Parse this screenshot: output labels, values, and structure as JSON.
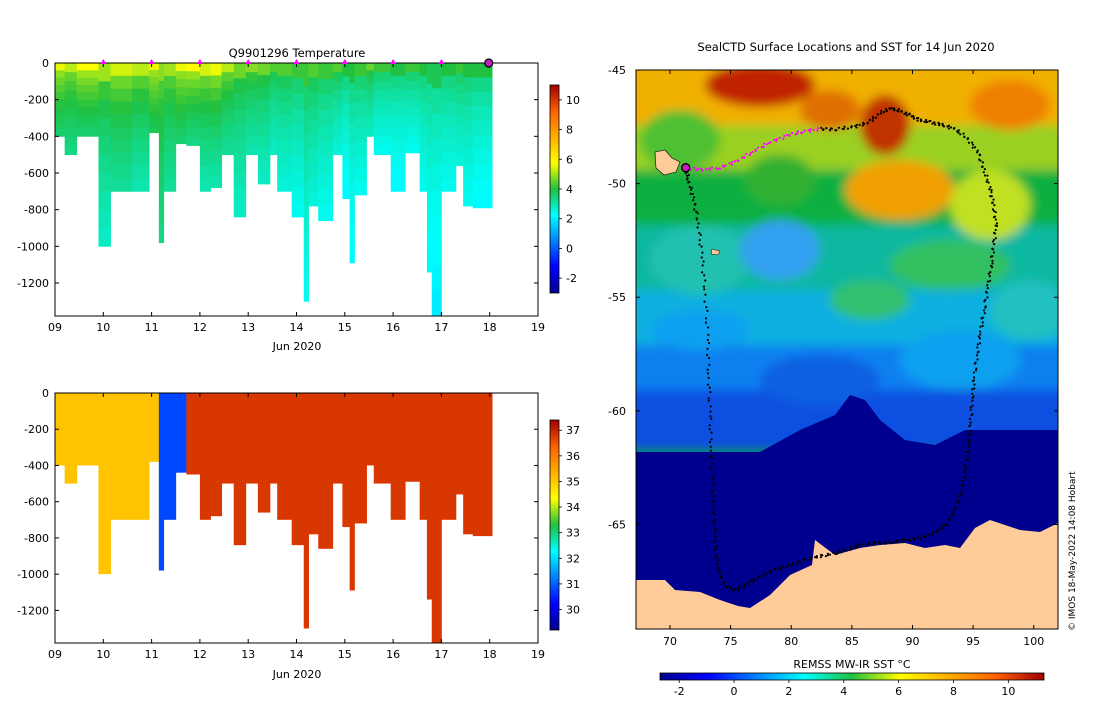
{
  "chart_data": [
    {
      "type": "heatmap",
      "title": "Q9901296  Temperature",
      "xlabel": "Jun 2020",
      "ylabel": "",
      "x_ticks": [
        "09",
        "10",
        "11",
        "12",
        "13",
        "14",
        "15",
        "16",
        "17",
        "18",
        "19"
      ],
      "xlim": [
        9,
        19
      ],
      "y_ticks": [
        0,
        -200,
        -400,
        -600,
        -800,
        -1000,
        -1200
      ],
      "ylim": [
        -1380,
        0
      ],
      "colorbar": {
        "ticks": [
          10,
          8,
          6,
          4,
          2,
          0,
          -2
        ],
        "range": [
          -3,
          11
        ]
      },
      "surface_markers": [
        10,
        11,
        12,
        13,
        14,
        15,
        16,
        17
      ],
      "profiles": [
        {
          "t0": 9.0,
          "t1": 9.2,
          "depth": 400,
          "surface": 5.6,
          "deep": 3.6
        },
        {
          "t0": 9.2,
          "t1": 9.45,
          "depth": 500,
          "surface": 5.2,
          "deep": 3.4
        },
        {
          "t0": 9.45,
          "t1": 9.9,
          "depth": 400,
          "surface": 5.8,
          "deep": 3.6
        },
        {
          "t0": 9.9,
          "t1": 10.15,
          "depth": 1000,
          "surface": 5.0,
          "deep": 2.8
        },
        {
          "t0": 10.15,
          "t1": 10.6,
          "depth": 700,
          "surface": 5.4,
          "deep": 3.2
        },
        {
          "t0": 10.6,
          "t1": 10.95,
          "depth": 700,
          "surface": 5.2,
          "deep": 3.0
        },
        {
          "t0": 10.95,
          "t1": 11.15,
          "depth": 380,
          "surface": 5.6,
          "deep": 3.8
        },
        {
          "t0": 11.15,
          "t1": 11.25,
          "depth": 980,
          "surface": 4.8,
          "deep": 3.4
        },
        {
          "t0": 11.25,
          "t1": 11.5,
          "depth": 700,
          "surface": 5.0,
          "deep": 3.2
        },
        {
          "t0": 11.5,
          "t1": 11.72,
          "depth": 440,
          "surface": 5.6,
          "deep": 3.6
        },
        {
          "t0": 11.72,
          "t1": 12.0,
          "depth": 450,
          "surface": 5.8,
          "deep": 3.4
        },
        {
          "t0": 12.0,
          "t1": 12.22,
          "depth": 700,
          "surface": 5.4,
          "deep": 3.0
        },
        {
          "t0": 12.22,
          "t1": 12.45,
          "depth": 680,
          "surface": 5.6,
          "deep": 3.0
        },
        {
          "t0": 12.45,
          "t1": 12.7,
          "depth": 500,
          "surface": 5.2,
          "deep": 3.2
        },
        {
          "t0": 12.7,
          "t1": 12.95,
          "depth": 840,
          "surface": 4.6,
          "deep": 2.8
        },
        {
          "t0": 12.95,
          "t1": 13.2,
          "depth": 500,
          "surface": 4.8,
          "deep": 3.0
        },
        {
          "t0": 13.2,
          "t1": 13.45,
          "depth": 660,
          "surface": 4.6,
          "deep": 2.8
        },
        {
          "t0": 13.45,
          "t1": 13.6,
          "depth": 500,
          "surface": 4.4,
          "deep": 2.8
        },
        {
          "t0": 13.6,
          "t1": 13.9,
          "depth": 700,
          "surface": 4.4,
          "deep": 2.6
        },
        {
          "t0": 13.9,
          "t1": 14.15,
          "depth": 840,
          "surface": 4.2,
          "deep": 2.4
        },
        {
          "t0": 14.15,
          "t1": 14.25,
          "depth": 1300,
          "surface": 4.2,
          "deep": 2.4
        },
        {
          "t0": 14.25,
          "t1": 14.45,
          "depth": 780,
          "surface": 4.4,
          "deep": 2.6
        },
        {
          "t0": 14.45,
          "t1": 14.75,
          "depth": 860,
          "surface": 4.2,
          "deep": 2.4
        },
        {
          "t0": 14.75,
          "t1": 14.95,
          "depth": 500,
          "surface": 4.4,
          "deep": 2.6
        },
        {
          "t0": 14.95,
          "t1": 15.1,
          "depth": 740,
          "surface": 4.0,
          "deep": 2.2
        },
        {
          "t0": 15.1,
          "t1": 15.2,
          "depth": 1090,
          "surface": 4.0,
          "deep": 2.2
        },
        {
          "t0": 15.2,
          "t1": 15.45,
          "depth": 720,
          "surface": 4.2,
          "deep": 2.4
        },
        {
          "t0": 15.45,
          "t1": 15.6,
          "depth": 400,
          "surface": 4.6,
          "deep": 2.8
        },
        {
          "t0": 15.6,
          "t1": 15.95,
          "depth": 500,
          "surface": 4.2,
          "deep": 2.4
        },
        {
          "t0": 15.95,
          "t1": 16.25,
          "depth": 700,
          "surface": 4.0,
          "deep": 2.2
        },
        {
          "t0": 16.25,
          "t1": 16.55,
          "depth": 490,
          "surface": 4.2,
          "deep": 2.4
        },
        {
          "t0": 16.55,
          "t1": 16.7,
          "depth": 700,
          "surface": 4.0,
          "deep": 2.4
        },
        {
          "t0": 16.7,
          "t1": 16.8,
          "depth": 1140,
          "surface": 3.8,
          "deep": 2.2
        },
        {
          "t0": 16.8,
          "t1": 17.0,
          "depth": 1380,
          "surface": 3.8,
          "deep": 2.0
        },
        {
          "t0": 17.0,
          "t1": 17.3,
          "depth": 700,
          "surface": 4.0,
          "deep": 2.4
        },
        {
          "t0": 17.3,
          "t1": 17.45,
          "depth": 560,
          "surface": 4.2,
          "deep": 2.6
        },
        {
          "t0": 17.45,
          "t1": 17.65,
          "depth": 780,
          "surface": 4.0,
          "deep": 2.4
        },
        {
          "t0": 17.65,
          "t1": 18.05,
          "depth": 790,
          "surface": 4.0,
          "deep": 2.2
        }
      ]
    },
    {
      "type": "heatmap",
      "title": "",
      "xlabel": "Jun 2020",
      "ylabel": "",
      "x_ticks": [
        "09",
        "10",
        "11",
        "12",
        "13",
        "14",
        "15",
        "16",
        "17",
        "18",
        "19"
      ],
      "xlim": [
        9,
        19
      ],
      "y_ticks": [
        0,
        -200,
        -400,
        -600,
        -800,
        -1000,
        -1200
      ],
      "ylim": [
        -1380,
        0
      ],
      "colorbar": {
        "ticks": [
          37,
          36,
          35,
          34,
          33,
          32,
          31,
          30
        ],
        "range": [
          29.2,
          37.4
        ]
      },
      "profiles": [
        {
          "t0": 9.0,
          "t1": 9.2,
          "depth": 400,
          "value": 35.1
        },
        {
          "t0": 9.2,
          "t1": 9.45,
          "depth": 500,
          "value": 35.1
        },
        {
          "t0": 9.45,
          "t1": 9.9,
          "depth": 400,
          "value": 35.1
        },
        {
          "t0": 9.9,
          "t1": 10.15,
          "depth": 1000,
          "value": 35.1
        },
        {
          "t0": 10.15,
          "t1": 10.6,
          "depth": 700,
          "value": 35.1
        },
        {
          "t0": 10.6,
          "t1": 10.95,
          "depth": 700,
          "value": 35.1
        },
        {
          "t0": 10.95,
          "t1": 11.15,
          "depth": 380,
          "value": 35.1
        },
        {
          "t0": 11.15,
          "t1": 11.25,
          "depth": 980,
          "value": 30.8
        },
        {
          "t0": 11.25,
          "t1": 11.5,
          "depth": 700,
          "value": 30.8
        },
        {
          "t0": 11.5,
          "t1": 11.72,
          "depth": 440,
          "value": 30.8
        },
        {
          "t0": 11.72,
          "t1": 12.0,
          "depth": 450,
          "value": 36.8
        },
        {
          "t0": 12.0,
          "t1": 12.22,
          "depth": 700,
          "value": 36.8
        },
        {
          "t0": 12.22,
          "t1": 12.45,
          "depth": 680,
          "value": 36.8
        },
        {
          "t0": 12.45,
          "t1": 12.7,
          "depth": 500,
          "value": 36.8
        },
        {
          "t0": 12.7,
          "t1": 12.95,
          "depth": 840,
          "value": 36.8
        },
        {
          "t0": 12.95,
          "t1": 13.2,
          "depth": 500,
          "value": 36.8
        },
        {
          "t0": 13.2,
          "t1": 13.45,
          "depth": 660,
          "value": 36.8
        },
        {
          "t0": 13.45,
          "t1": 13.6,
          "depth": 500,
          "value": 36.8
        },
        {
          "t0": 13.6,
          "t1": 13.9,
          "depth": 700,
          "value": 36.8
        },
        {
          "t0": 13.9,
          "t1": 14.15,
          "depth": 840,
          "value": 36.8
        },
        {
          "t0": 14.15,
          "t1": 14.25,
          "depth": 1300,
          "value": 36.8
        },
        {
          "t0": 14.25,
          "t1": 14.45,
          "depth": 780,
          "value": 36.8
        },
        {
          "t0": 14.45,
          "t1": 14.75,
          "depth": 860,
          "value": 36.8
        },
        {
          "t0": 14.75,
          "t1": 14.95,
          "depth": 500,
          "value": 36.8
        },
        {
          "t0": 14.95,
          "t1": 15.1,
          "depth": 740,
          "value": 36.8
        },
        {
          "t0": 15.1,
          "t1": 15.2,
          "depth": 1090,
          "value": 36.8
        },
        {
          "t0": 15.2,
          "t1": 15.45,
          "depth": 720,
          "value": 36.8
        },
        {
          "t0": 15.45,
          "t1": 15.6,
          "depth": 400,
          "value": 36.8
        },
        {
          "t0": 15.6,
          "t1": 15.95,
          "depth": 500,
          "value": 36.8
        },
        {
          "t0": 15.95,
          "t1": 16.25,
          "depth": 700,
          "value": 36.8
        },
        {
          "t0": 16.25,
          "t1": 16.55,
          "depth": 490,
          "value": 36.8
        },
        {
          "t0": 16.55,
          "t1": 16.7,
          "depth": 700,
          "value": 36.8
        },
        {
          "t0": 16.7,
          "t1": 16.8,
          "depth": 1140,
          "value": 36.8
        },
        {
          "t0": 16.8,
          "t1": 17.0,
          "depth": 1380,
          "value": 36.8
        },
        {
          "t0": 17.0,
          "t1": 17.3,
          "depth": 700,
          "value": 36.8
        },
        {
          "t0": 17.3,
          "t1": 17.45,
          "depth": 560,
          "value": 36.8
        },
        {
          "t0": 17.45,
          "t1": 17.65,
          "depth": 780,
          "value": 36.8
        },
        {
          "t0": 17.65,
          "t1": 18.05,
          "depth": 790,
          "value": 36.8
        }
      ]
    },
    {
      "type": "heatmap",
      "title": "SealCTD Surface Locations and SST for 14 Jun 2020",
      "xlabel": "",
      "ylabel": "",
      "x_ticks": [
        70,
        75,
        80,
        85,
        90,
        95,
        100
      ],
      "y_ticks": [
        -45,
        -50,
        -55,
        -60,
        -65
      ],
      "xlim": [
        67.2,
        102
      ],
      "ylim": [
        -69.6,
        -45
      ],
      "colorbar": {
        "label": "REMSS MW-IR SST °C",
        "ticks": [
          -2,
          0,
          2,
          4,
          6,
          8,
          10
        ],
        "range": [
          -2.7,
          11.3
        ]
      },
      "highlighted_position": {
        "lon": 71.3,
        "lat": -49.3
      },
      "copyright": "© IMOS 18-May-2022 14:08 Hobart",
      "track_lon": [
        71.3,
        72.6,
        74.1,
        75.6,
        76.8,
        78.2,
        79.6,
        81.0,
        82.4,
        83.8,
        85.2,
        86.4,
        87.3,
        88.2,
        89.0,
        89.8,
        90.6,
        91.5,
        92.4,
        93.5,
        94.5,
        95.4,
        95.9,
        96.4,
        96.7,
        96.9,
        96.7,
        96.5,
        96.2,
        95.9,
        95.6,
        95.3,
        95.1,
        94.9,
        94.8,
        94.6,
        94.4,
        94.0,
        93.5,
        92.8,
        91.8,
        90.6,
        89.4,
        88.2,
        87.0,
        85.8,
        84.6,
        83.4,
        82.2,
        81.0,
        79.8,
        78.6,
        77.4,
        76.4,
        75.4,
        74.6,
        74.0,
        73.8,
        73.7,
        73.6,
        73.5,
        73.4,
        73.3,
        73.2,
        73.1,
        72.9,
        72.6,
        72.3,
        71.9,
        71.5,
        71.3
      ],
      "track_lat": [
        -49.3,
        -49.4,
        -49.3,
        -49.0,
        -48.6,
        -48.2,
        -47.9,
        -47.7,
        -47.6,
        -47.6,
        -47.5,
        -47.3,
        -46.9,
        -46.7,
        -46.8,
        -47.0,
        -47.2,
        -47.3,
        -47.4,
        -47.6,
        -48.0,
        -48.6,
        -49.4,
        -50.2,
        -51.0,
        -51.8,
        -52.7,
        -53.6,
        -54.6,
        -55.6,
        -56.6,
        -57.6,
        -58.6,
        -59.6,
        -60.6,
        -61.6,
        -62.6,
        -63.6,
        -64.4,
        -65.0,
        -65.4,
        -65.6,
        -65.7,
        -65.8,
        -65.8,
        -65.9,
        -66.1,
        -66.3,
        -66.4,
        -66.6,
        -66.8,
        -67.0,
        -67.3,
        -67.6,
        -67.9,
        -67.7,
        -67.1,
        -66.3,
        -65.3,
        -64.2,
        -63.0,
        -61.6,
        -60.0,
        -58.4,
        -56.6,
        -54.7,
        -53.0,
        -51.6,
        -50.6,
        -49.8,
        -49.3
      ]
    }
  ]
}
